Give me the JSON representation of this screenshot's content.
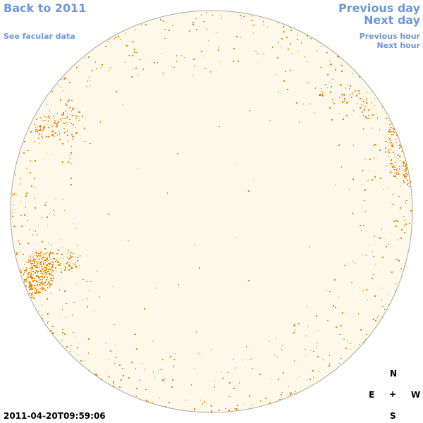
{
  "nav": {
    "back_label": "Back to 2011",
    "facular_label": "See facular data",
    "prev_day_label": "Previous day",
    "next_day_label": "Next day",
    "prev_hour_label": "Previous hour",
    "next_hour_label": "Next hour"
  },
  "compass": {
    "north": "N",
    "east": "E",
    "center": "+",
    "west": "W",
    "south": "S"
  },
  "timestamp": "2011-04-20T09:59:06",
  "colors": {
    "link": "#6d97d9",
    "disk_fill": "#fdf8ea",
    "disk_stroke": "#a8a8a0",
    "facula": "#e8870a"
  },
  "disk": {
    "image_type": "solar disk facular map",
    "has_border": true
  }
}
